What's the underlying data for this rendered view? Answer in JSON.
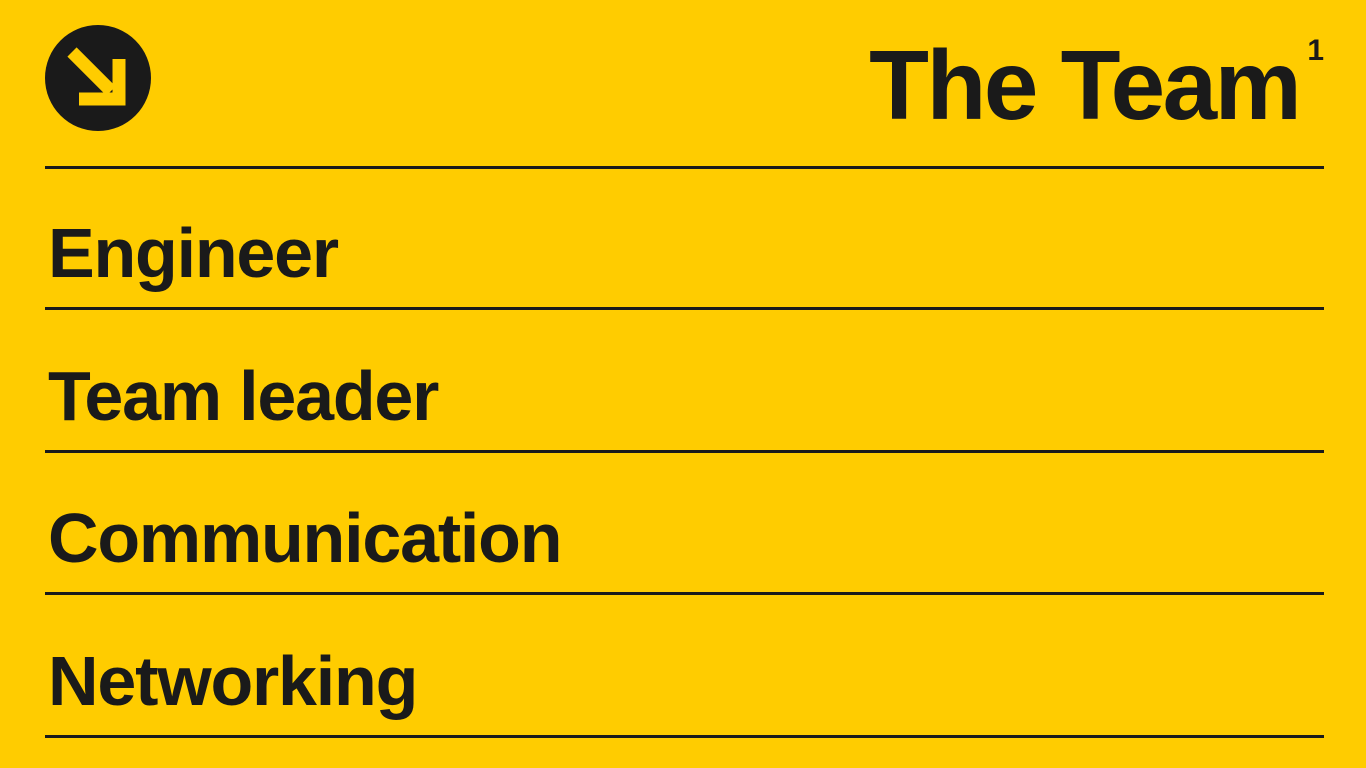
{
  "header": {
    "title": "The Team",
    "title_superscript": "1",
    "logo_icon": "arrow-down-right-circle-icon"
  },
  "menu": {
    "items": [
      {
        "label": "Engineer"
      },
      {
        "label": "Team leader"
      },
      {
        "label": "Communication"
      },
      {
        "label": "Networking"
      }
    ]
  },
  "colors": {
    "background": "#FFCC00",
    "foreground": "#1a1a1a"
  }
}
